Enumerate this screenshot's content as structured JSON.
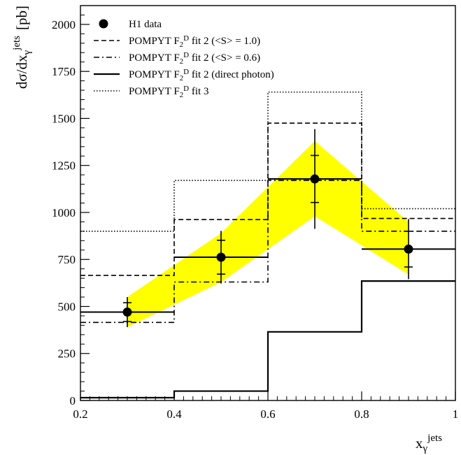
{
  "chart_data": {
    "type": "line",
    "xlim": [
      0.2,
      1.0
    ],
    "ylim": [
      0,
      2100
    ],
    "x_ticks": [
      0.2,
      0.4,
      0.6,
      0.8,
      1.0
    ],
    "x_tick_labels": [
      "0.2",
      "0.4",
      "0.6",
      "0.8",
      "1"
    ],
    "y_ticks": [
      0,
      250,
      500,
      750,
      1000,
      1250,
      1500,
      1750,
      2000
    ],
    "y_tick_labels": [
      "0",
      "250",
      "500",
      "750",
      "1000",
      "1250",
      "1500",
      "1750",
      "2000"
    ],
    "xlabel": "x_γ^jets",
    "ylabel": "dσ/dx_γ^jets [pb]",
    "legend_position": "top-left",
    "bin_edges": [
      0.2,
      0.4,
      0.6,
      0.8,
      1.0
    ],
    "band": {
      "color": "#ffff00",
      "x": [
        0.3,
        0.5,
        0.7,
        0.9
      ],
      "low": [
        390,
        630,
        980,
        670
      ],
      "high": [
        550,
        890,
        1380,
        950
      ]
    },
    "data_points": {
      "name": "H1 data",
      "x": [
        0.3,
        0.5,
        0.7,
        0.9
      ],
      "y": [
        470,
        762,
        1178,
        805
      ],
      "stat_err": [
        50,
        90,
        125,
        95
      ],
      "tot_err": [
        80,
        140,
        265,
        160
      ]
    },
    "series": [
      {
        "name": "POMPYT F_2^D fit 2 (<S> = 1.0)",
        "style": "dashed",
        "values": [
          665,
          962,
          1475,
          968
        ]
      },
      {
        "name": "POMPYT F_2^D fit 2 (<S> = 0.6)",
        "style": "dashdot",
        "values": [
          415,
          630,
          1170,
          900
        ]
      },
      {
        "name": "POMPYT F_2^D fit 2 (direct photon)",
        "style": "solid",
        "values": [
          15,
          50,
          365,
          635
        ]
      },
      {
        "name": "POMPYT F_2^D fit 3",
        "style": "dotted",
        "values": [
          900,
          1170,
          1640,
          1020
        ]
      }
    ],
    "legend": [
      {
        "kind": "marker",
        "label": "H1 data"
      },
      {
        "kind": "line",
        "style": "dashed",
        "pre": "POMPYT F",
        "sub": "2",
        "sup": "D",
        "post": " fit 2 (<S> = 1.0)"
      },
      {
        "kind": "line",
        "style": "dashdot",
        "pre": "POMPYT F",
        "sub": "2",
        "sup": "D",
        "post": " fit 2 (<S> = 0.6)"
      },
      {
        "kind": "line",
        "style": "solid",
        "pre": "POMPYT F",
        "sub": "2",
        "sup": "D",
        "post": " fit 2 (direct photon)"
      },
      {
        "kind": "line",
        "style": "dotted",
        "pre": "POMPYT F",
        "sub": "2",
        "sup": "D",
        "post": " fit 3"
      }
    ],
    "ylabel_parts": {
      "main": "dσ/dx",
      "sub": "γ",
      "sup": "jets",
      "unit": "[pb]"
    },
    "xlabel_parts": {
      "main": "x",
      "sub": "γ",
      "sup": "jets"
    }
  }
}
